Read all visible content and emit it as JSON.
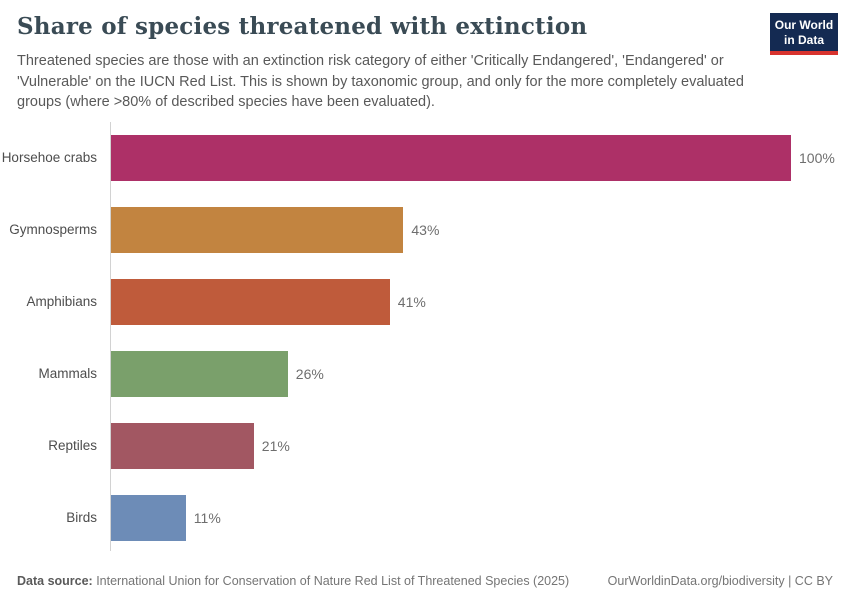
{
  "header": {
    "title": "Share of species threatened with extinction",
    "subtitle": "Threatened species are those with an extinction risk category of either 'Critically Endangered', 'Endangered' or 'Vulnerable' on the IUCN Red List. This is shown by taxonomic group, and only for the more completely evaluated groups (where >80% of described species have been evaluated).",
    "logo": {
      "line1": "Our World",
      "line2": "in Data",
      "bg_color": "#142a52",
      "accent_color": "#d8332e"
    }
  },
  "chart_data": {
    "type": "bar",
    "orientation": "horizontal",
    "title": "Share of species threatened with extinction",
    "categories": [
      "Horsehoe crabs",
      "Gymnosperms",
      "Amphibians",
      "Mammals",
      "Reptiles",
      "Birds"
    ],
    "values": [
      100,
      43,
      41,
      26,
      21,
      11
    ],
    "value_labels": [
      "100%",
      "43%",
      "41%",
      "26%",
      "21%",
      "11%"
    ],
    "colors": [
      "#ad3067",
      "#c28440",
      "#bf5b3b",
      "#7aa06b",
      "#a25762",
      "#6d8cb7"
    ],
    "unit": "%",
    "xlim": [
      0,
      100
    ],
    "grid": false,
    "legend": "none"
  },
  "footer": {
    "source_label": "Data source:",
    "source_text": " International Union for Conservation of Nature Red List of Threatened Species (2025)",
    "link_text": "OurWorldinData.org/biodiversity | CC BY"
  }
}
